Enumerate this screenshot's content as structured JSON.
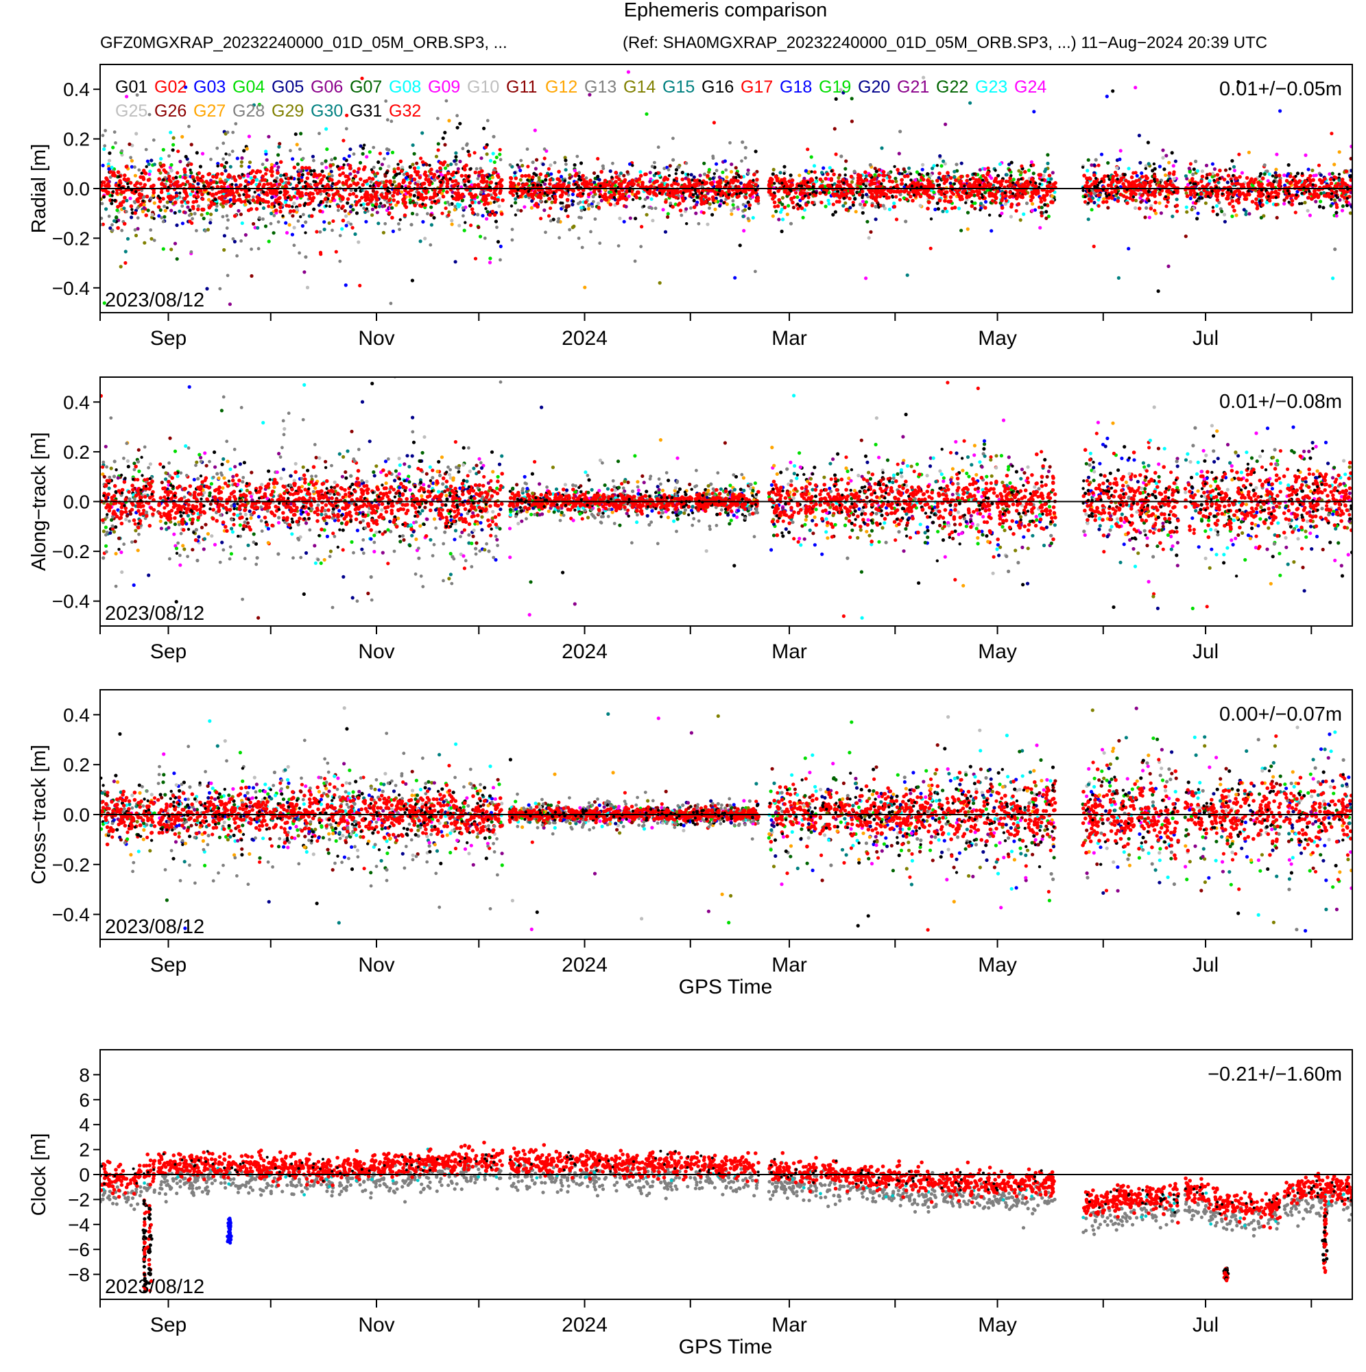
{
  "chart_data": {
    "type": "scatter",
    "title": "Ephemeris comparison",
    "subtitle_left": "GFZ0MGXRAP_20232240000_01D_05M_ORB.SP3, ...",
    "subtitle_right": "(Ref: SHA0MGXRAP_20232240000_01D_05M_ORB.SP3, ...) 11−Aug−2024 20:39 UTC",
    "x_axis": {
      "label": "GPS Time",
      "range_days": [
        0,
        367
      ],
      "month_ticks_days": [
        0,
        20,
        50,
        81,
        111,
        142,
        173,
        202,
        233,
        263,
        294,
        324,
        355
      ],
      "labeled_ticks": [
        {
          "day": 20,
          "label": "Sep"
        },
        {
          "day": 81,
          "label": "Nov"
        },
        {
          "day": 142,
          "label": "2024"
        },
        {
          "day": 202,
          "label": "Mar"
        },
        {
          "day": 263,
          "label": "May"
        },
        {
          "day": 324,
          "label": "Jul"
        }
      ]
    },
    "legend": {
      "placement": "top-left",
      "entries": [
        {
          "name": "G01",
          "color": "#000000"
        },
        {
          "name": "G02",
          "color": "#ff0000"
        },
        {
          "name": "G03",
          "color": "#0000ff"
        },
        {
          "name": "G04",
          "color": "#00dd00"
        },
        {
          "name": "G05",
          "color": "#00008b"
        },
        {
          "name": "G06",
          "color": "#8b008b"
        },
        {
          "name": "G07",
          "color": "#006400"
        },
        {
          "name": "G08",
          "color": "#00ffff"
        },
        {
          "name": "G09",
          "color": "#ff00ff"
        },
        {
          "name": "G10",
          "color": "#bebebe"
        },
        {
          "name": "G11",
          "color": "#8b0000"
        },
        {
          "name": "G12",
          "color": "#ffa500"
        },
        {
          "name": "G13",
          "color": "#808080"
        },
        {
          "name": "G14",
          "color": "#808000"
        },
        {
          "name": "G15",
          "color": "#008080"
        },
        {
          "name": "G16",
          "color": "#000000"
        },
        {
          "name": "G17",
          "color": "#ff0000"
        },
        {
          "name": "G18",
          "color": "#0000ff"
        },
        {
          "name": "G19",
          "color": "#00dd00"
        },
        {
          "name": "G20",
          "color": "#00008b"
        },
        {
          "name": "G21",
          "color": "#8b008b"
        },
        {
          "name": "G22",
          "color": "#006400"
        },
        {
          "name": "G23",
          "color": "#00ffff"
        },
        {
          "name": "G24",
          "color": "#ff00ff"
        },
        {
          "name": "G25",
          "color": "#bebebe"
        },
        {
          "name": "G26",
          "color": "#8b0000"
        },
        {
          "name": "G27",
          "color": "#ffa500"
        },
        {
          "name": "G28",
          "color": "#808080"
        },
        {
          "name": "G29",
          "color": "#808000"
        },
        {
          "name": "G30",
          "color": "#008080"
        },
        {
          "name": "G31",
          "color": "#000000"
        },
        {
          "name": "G32",
          "color": "#ff0000"
        }
      ]
    },
    "gaps_days": [
      [
        16,
        17
      ],
      [
        118,
        120
      ],
      [
        193,
        196
      ],
      [
        210,
        211
      ],
      [
        280,
        288
      ],
      [
        316,
        318
      ],
      [
        346,
        347
      ]
    ],
    "panels": [
      {
        "id": "radial",
        "ylabel": "Radial [m]",
        "ylim": [
          -0.5,
          0.5
        ],
        "yticks": [
          0.4,
          0.2,
          0.0,
          -0.2,
          -0.4
        ],
        "ytick_labels": [
          "0.4",
          "0.2",
          "0.0",
          "−0.2",
          "−0.4"
        ],
        "stats": "0.01+/−0.05m",
        "start_date": "2023/08/12",
        "spread_by_period": [
          0.08,
          0.08,
          0.05,
          0.05,
          0.05
        ],
        "dominant_color": "#ff0000"
      },
      {
        "id": "along-track",
        "ylabel": "Along−track [m]",
        "ylim": [
          -0.5,
          0.5
        ],
        "yticks": [
          0.4,
          0.2,
          0.0,
          -0.2,
          -0.4
        ],
        "ytick_labels": [
          "0.4",
          "0.2",
          "0.0",
          "−0.2",
          "−0.4"
        ],
        "stats": "0.01+/−0.08m",
        "start_date": "2023/08/12",
        "spread_by_period": [
          0.09,
          0.09,
          0.03,
          0.08,
          0.11
        ],
        "dominant_color": "#ff0000"
      },
      {
        "id": "cross-track",
        "ylabel": "Cross−track [m]",
        "ylim": [
          -0.5,
          0.5
        ],
        "yticks": [
          0.4,
          0.2,
          0.0,
          -0.2,
          -0.4
        ],
        "ytick_labels": [
          "0.4",
          "0.2",
          "0.0",
          "−0.2",
          "−0.4"
        ],
        "stats": "0.00+/−0.07m",
        "start_date": "2023/08/12",
        "spread_by_period": [
          0.06,
          0.07,
          0.02,
          0.08,
          0.11
        ],
        "dominant_color": "#ff0000",
        "xlabel": "GPS Time"
      },
      {
        "id": "clock",
        "ylabel": "Clock [m]",
        "ylim": [
          -10,
          10
        ],
        "yticks": [
          8,
          6,
          4,
          2,
          0,
          -2,
          -4,
          -6,
          -8
        ],
        "ytick_labels": [
          "8",
          "6",
          "4",
          "2",
          "0",
          "−2",
          "−4",
          "−6",
          "−8"
        ],
        "stats": "−0.21+/−1.60m",
        "start_date": "2023/08/12",
        "dominant_color": "#ff0000",
        "xlabel": "GPS Time",
        "trend_points": [
          [
            0,
            -0.2
          ],
          [
            10,
            -0.5
          ],
          [
            17,
            0.6
          ],
          [
            30,
            0.8
          ],
          [
            50,
            0.6
          ],
          [
            65,
            0.3
          ],
          [
            80,
            0.6
          ],
          [
            100,
            1.0
          ],
          [
            118,
            1.2
          ],
          [
            120,
            1.0
          ],
          [
            142,
            1.0
          ],
          [
            160,
            0.8
          ],
          [
            193,
            0.6
          ],
          [
            200,
            0.3
          ],
          [
            220,
            0.0
          ],
          [
            240,
            -0.5
          ],
          [
            265,
            -0.8
          ],
          [
            280,
            -0.8
          ],
          [
            288,
            -2.5
          ],
          [
            300,
            -2.0
          ],
          [
            316,
            -1.8
          ],
          [
            318,
            -1.0
          ],
          [
            330,
            -2.5
          ],
          [
            346,
            -2.5
          ],
          [
            347,
            -1.5
          ],
          [
            360,
            -1.0
          ],
          [
            367,
            -1.5
          ]
        ],
        "excursions": [
          {
            "day": 13,
            "min": -9.5,
            "max": -1.5
          },
          {
            "day": 14.5,
            "min": -9.5,
            "max": -2.5
          },
          {
            "day": 38,
            "min": -5.5,
            "max": -3.5
          },
          {
            "day": 359,
            "min": -8.5,
            "max": -2.0
          },
          {
            "day": 330,
            "min": -8.5,
            "max": -7.5
          }
        ]
      }
    ]
  }
}
